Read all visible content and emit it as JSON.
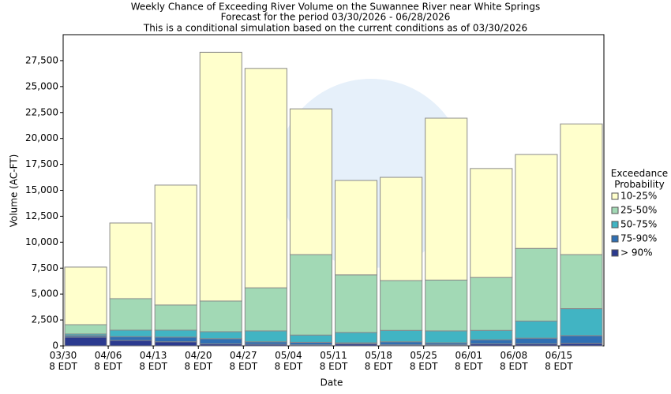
{
  "chart_data": {
    "type": "stacked_bar",
    "title": "Weekly Chance of Exceeding River Volume on the Suwannee River near White Springs",
    "subtitle": "Forecast for the period 03/30/2026 - 06/28/2026",
    "note": "This is a conditional simulation based on the current conditions as of 03/30/2026",
    "x_label": "Date",
    "y_label": "Volume (AC-FT)",
    "legend_title": "Exceedance Probability",
    "legend_position": "right",
    "grid": false,
    "categories": [
      "03/30\n8 EDT",
      "04/06\n8 EDT",
      "04/13\n8 EDT",
      "04/20\n8 EDT",
      "04/27\n8 EDT",
      "05/04\n8 EDT",
      "05/11\n8 EDT",
      "05/18\n8 EDT",
      "05/25\n8 EDT",
      "06/01\n8 EDT",
      "06/08\n8 EDT",
      "06/15\n8 EDT"
    ],
    "series": [
      {
        "name": "> 90%",
        "color": "#2b3a8f",
        "values": [
          840,
          530,
          400,
          200,
          150,
          100,
          200,
          100,
          100,
          200,
          200,
          250
        ]
      },
      {
        "name": "75-90%",
        "color": "#2f6fb3",
        "values": [
          160,
          370,
          450,
          500,
          250,
          250,
          100,
          300,
          200,
          400,
          550,
          750
        ]
      },
      {
        "name": "50-75%",
        "color": "#41b4c3",
        "values": [
          150,
          620,
          670,
          670,
          1050,
          700,
          1000,
          1100,
          1150,
          900,
          1650,
          2600
        ]
      },
      {
        "name": "25-50%",
        "color": "#a2d9b5",
        "values": [
          900,
          3040,
          2430,
          2960,
          4150,
          7750,
          5550,
          4800,
          4900,
          5100,
          7000,
          5200
        ]
      },
      {
        "name": "10-25%",
        "color": "#ffffcc",
        "values": [
          5550,
          7290,
          11550,
          23970,
          21150,
          14050,
          9100,
          9950,
          15600,
          10500,
          9050,
          12600
        ]
      }
    ],
    "ylim": [
      0,
      30000
    ],
    "yticks": [
      0,
      {
        "value": 2500,
        "label": "2,500"
      },
      {
        "value": 5000,
        "label": "5,000"
      },
      {
        "value": 7500,
        "label": "7,500"
      },
      {
        "value": 10000,
        "label": "10,000"
      },
      {
        "value": 12500,
        "label": "12,500"
      },
      {
        "value": 15000,
        "label": "15,000"
      },
      {
        "value": 17500,
        "label": "17,500"
      },
      {
        "value": 20000,
        "label": "20,000"
      },
      {
        "value": 22500,
        "label": "22,500"
      },
      {
        "value": 25000,
        "label": "25,000"
      },
      {
        "value": 27500,
        "label": "27,500"
      }
    ]
  }
}
